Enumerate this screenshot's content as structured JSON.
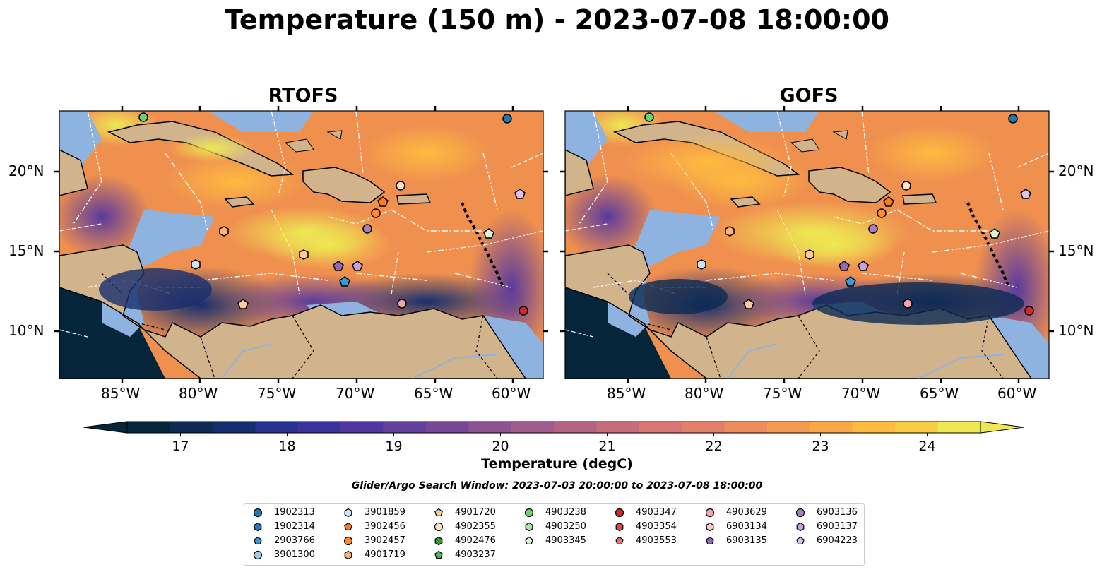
{
  "title": "Temperature (150 m) - 2023-07-08 18:00:00",
  "panels": [
    {
      "title": "RTOFS"
    },
    {
      "title": "GOFS"
    }
  ],
  "axes": {
    "lon_ticks": [
      "85°W",
      "80°W",
      "75°W",
      "70°W",
      "65°W",
      "60°W"
    ],
    "lat_ticks": [
      "20°N",
      "15°N",
      "10°N"
    ],
    "lon_range": [
      -89,
      -58
    ],
    "lat_range": [
      7,
      24
    ]
  },
  "colorbar": {
    "label": "Temperature (degC)",
    "ticks": [
      "17",
      "18",
      "19",
      "20",
      "21",
      "22",
      "23",
      "24"
    ],
    "range": [
      16.5,
      24.5
    ],
    "extend": "both",
    "colors": [
      "#05263a",
      "#0c2a52",
      "#172e6e",
      "#263190",
      "#3b329c",
      "#4f36a0",
      "#653f9c",
      "#784697",
      "#8c5291",
      "#a05a8c",
      "#b56384",
      "#c76c7d",
      "#d77674",
      "#e4806a",
      "#ef8c5d",
      "#f69a50",
      "#fba946",
      "#fdbb40",
      "#f9cd43",
      "#eee852"
    ]
  },
  "search_window": "Glider/Argo Search Window: 2023-07-03 20:00:00 to 2023-07-08 18:00:00",
  "legend": {
    "columns": [
      [
        {
          "id": "1902313",
          "marker": "circle",
          "color": "#1f77b4"
        },
        {
          "id": "1902314",
          "marker": "hexagon",
          "color": "#2a74c0"
        },
        {
          "id": "2903766",
          "marker": "pentagon",
          "color": "#3a9ad6"
        },
        {
          "id": "3901300",
          "marker": "circle",
          "color": "#9ecae9"
        }
      ],
      [
        {
          "id": "3901859",
          "marker": "hexagon",
          "color": "#c6e6f9"
        },
        {
          "id": "3902456",
          "marker": "pentagon",
          "color": "#ff7f0e"
        },
        {
          "id": "3902457",
          "marker": "circle",
          "color": "#ff8c2a"
        },
        {
          "id": "4901719",
          "marker": "hexagon",
          "color": "#ffb36b"
        }
      ],
      [
        {
          "id": "4901720",
          "marker": "pentagon",
          "color": "#ffc99a"
        },
        {
          "id": "4902355",
          "marker": "circle",
          "color": "#ffe3c6"
        },
        {
          "id": "4902476",
          "marker": "hexagon",
          "color": "#2ca02c"
        },
        {
          "id": "4903237",
          "marker": "pentagon",
          "color": "#4bbf4b"
        }
      ],
      [
        {
          "id": "4903238",
          "marker": "circle",
          "color": "#6fd06f"
        },
        {
          "id": "4903250",
          "marker": "hexagon",
          "color": "#a6e6a0"
        },
        {
          "id": "4903345",
          "marker": "pentagon",
          "color": "#d8f6d2"
        }
      ],
      [
        {
          "id": "4903347",
          "marker": "circle",
          "color": "#d62728"
        },
        {
          "id": "4903354",
          "marker": "hexagon",
          "color": "#e04a4a"
        },
        {
          "id": "4903553",
          "marker": "pentagon",
          "color": "#ec6f6f"
        }
      ],
      [
        {
          "id": "4903629",
          "marker": "circle",
          "color": "#f5a3a3"
        },
        {
          "id": "6903134",
          "marker": "hexagon",
          "color": "#f9caca"
        },
        {
          "id": "6903135",
          "marker": "pentagon",
          "color": "#9467bd"
        }
      ],
      [
        {
          "id": "6903136",
          "marker": "circle",
          "color": "#a57fcc"
        },
        {
          "id": "6903137",
          "marker": "hexagon",
          "color": "#c2a3e0"
        },
        {
          "id": "6904223",
          "marker": "pentagon",
          "color": "#d9c3f0"
        }
      ]
    ]
  },
  "colors": {
    "land": "#d2b48c",
    "shelf": "#8fb3e0",
    "deep": "#05263a",
    "eez_lines": "#ffffff"
  }
}
